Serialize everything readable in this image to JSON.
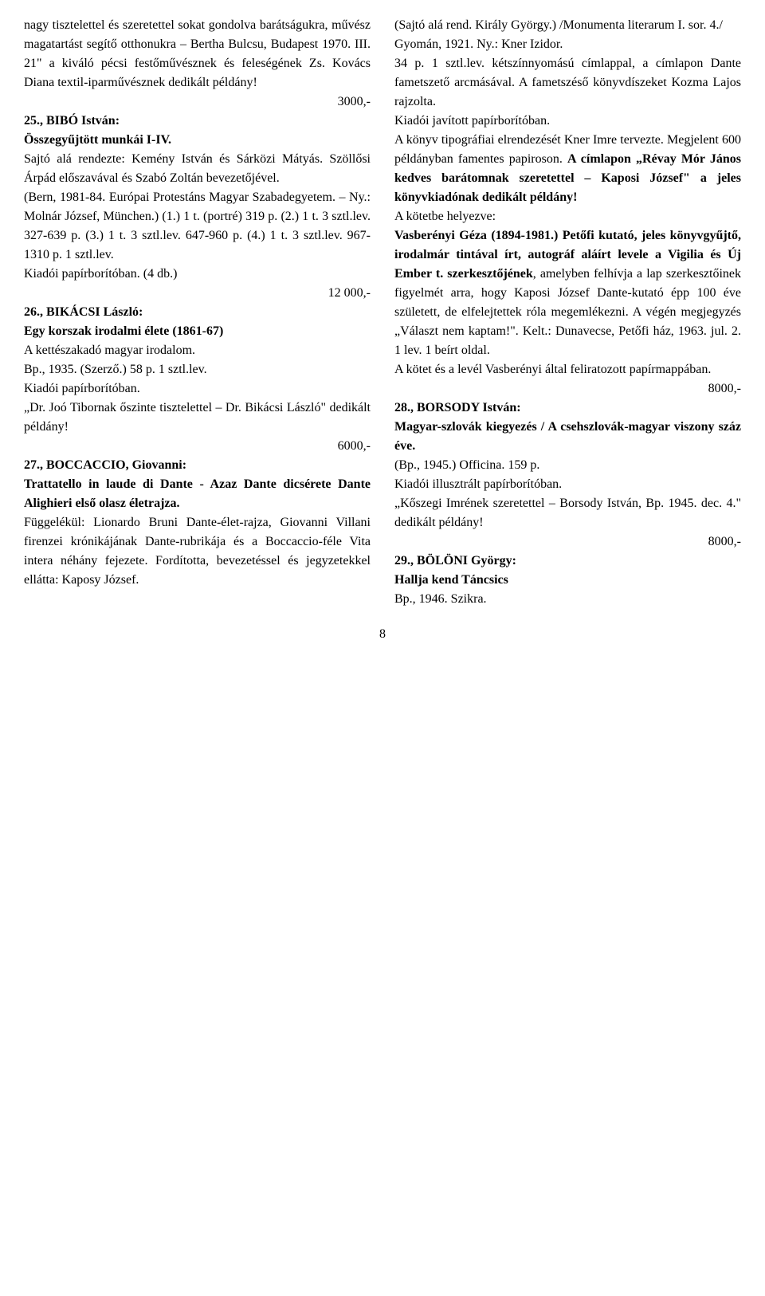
{
  "left_column": {
    "entry24_continuation": "nagy tisztelettel és szeretettel sokat gondolva barátságukra, művész maga­tartást segítő otthonukra – Bertha Bulcsu, Budapest 1970. III. 21\" a kiváló pécsi festőművésznek és fele­ségének Zs. Kovács Diana textil-ipar­művésznek dedikált példány!",
    "entry24_price": "3000,-",
    "entry25_header": "25., BIBÓ István:",
    "entry25_title": "Összegyűjtött munkái I-IV.",
    "entry25_body": "Sajtó alá rendezte: Kemény István és Sárközi Mátyás. Szöllősi Árpád előszavával és Szabó Zoltán beveze­tőjével.\n(Bern, 1981-84. Európai Protestáns Magyar Szabadegyetem. – Ny.: Molnár József, München.) (1.) 1 t. (portré) 319 p. (2.) 1 t. 3 sztl.lev. 327-639 p. (3.) 1 t. 3 sztl.lev. 647-960 p. (4.) 1 t. 3 sztl.lev. 967-1310 p. 1 sztl.lev.\nKiadói papírborítóban. (4 db.)",
    "entry25_price": "12 000,-",
    "entry26_header": "26., BIKÁCSI László:",
    "entry26_title": "Egy korszak irodalmi élete (1861-67)",
    "entry26_body": "A kettészakadó magyar irodalom.\nBp., 1935. (Szerző.) 58 p. 1 sztl.lev.\nKiadói papírborítóban.\n„Dr. Joó Tibornak őszinte tisztelettel – Dr. Bikácsi László\" dedikált pél­dány!",
    "entry26_price": "6000,-",
    "entry27_header": "27., BOCCACCIO, Giovanni:",
    "entry27_title": "Trattatello in laude di Dante - Azaz Dante dicsérete Dante Alighieri első olasz életrajza.",
    "entry27_body": "Függelékül: Lionardo Bruni Dante-­élet-rajza, Giovanni Villani firenzei krónikájának Dante-rubrikája és a Boccaccio-féle Vita intera néhány feje­zete. Fordította, bevezetéssel és jegy­zetekkel ellátta: Kaposy József."
  },
  "right_column": {
    "entry27_continuation": "(Sajtó alá rend. Király György.) /Monumenta literarum I. sor. 4./\nGyomán, 1921. Ny.: Kner Izidor.\n34 p. 1 sztl.lev. kétszínnyomású cím­lappal, a címlapon Dante fametszető arcmásával. A fametszéső könyvdísze­ket Kozma Lajos rajzolta.\nKiadói javított papírborítóban.\nA könyv tipográfiai elrendezését Kner Imre tervezte. Megjelent 600 példány­ban famentes papiroson. ",
    "entry27_dedication": "A címlapon „Révay Mór János kedves barátom­nak szeretettel – Kaposi József\" a jeles könyvkiadónak dedikált példány!",
    "entry27_helyezve": "A kötetbe helyezve:",
    "entry27_vasberenyi": "Vasberényi Géza (1894-1981.) Petőfi kutató, jeles könyvgyűjtő, irodalmár tintával írt, autográf aláírt levele a Vigilia és Új Ember t. szerkesztőjé­nek",
    "entry27_rest": ", amelyben felhívja a lap szerkesz­tőinek figyelmét arra, hogy Kaposi József Dante-kutató épp 100 éve született, de elfelejtettek róla megemlékezni. A vé­gén megjegyzés „Választ nem kap­tam!\". Kelt.: Dunavecse, Petőfi ház, 1963. jul. 2. 1 lev. 1 beírt oldal.\nA kötet és a levél Vasberényi által fel­iratozott papírmappában.",
    "entry27_price": "8000,-",
    "entry28_header": "28., BORSODY István:",
    "entry28_title": "Magyar-szlovák kiegyezés / A cseh­szlovák-magyar viszony száz éve.",
    "entry28_body": "(Bp., 1945.) Officina. 159 p.\nKiadói illusztrált papírborítóban.\n„Kőszegi Imrének szeretettel – Borsody István, Bp. 1945. dec. 4.\" dedikált példány!",
    "entry28_price": "8000,-",
    "entry29_header": "29., BÖLÖNI György:",
    "entry29_title": "Hallja kend Táncsics",
    "entry29_body": "Bp., 1946. Szikra."
  },
  "page_number": "8"
}
